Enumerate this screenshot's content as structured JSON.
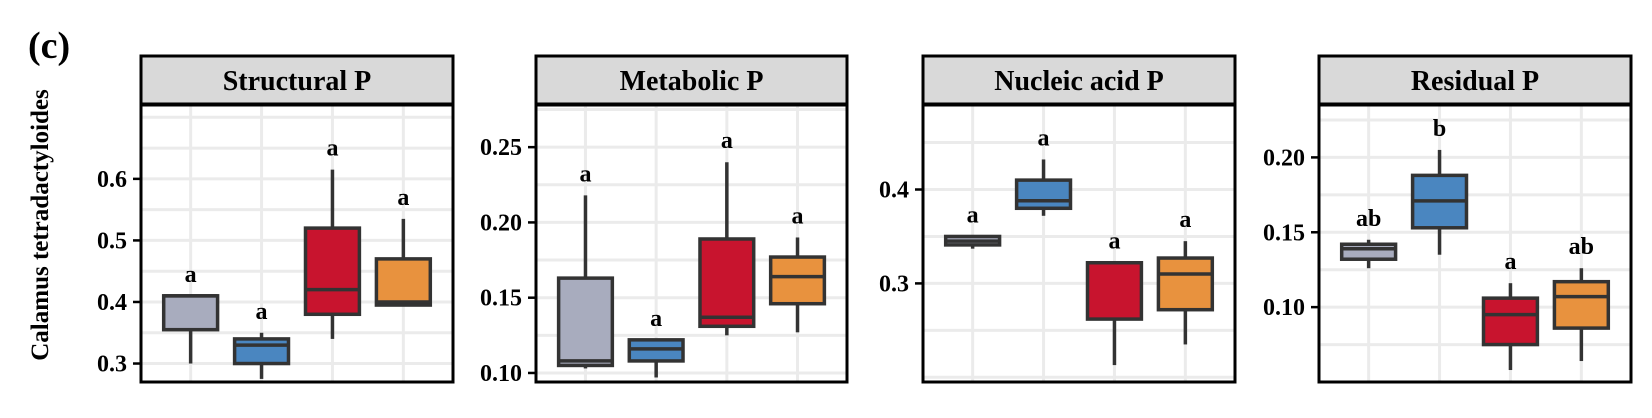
{
  "panel_label": "(c)",
  "y_axis_label": "Calamus tetradactyloides",
  "colors": {
    "group1": "#A8ACBE",
    "group2": "#4A86C0",
    "group3": "#C8142E",
    "group4": "#E8923E",
    "strip_bg": "#D9D9D9",
    "grid": "#EBEBEB",
    "outline": "#333333"
  },
  "chart_data": [
    {
      "type": "box",
      "title": "Structural P",
      "ylim": [
        0.27,
        0.72
      ],
      "yticks": [
        0.3,
        0.4,
        0.5,
        0.6
      ],
      "ytick_labels": [
        "0.3",
        "0.4",
        "0.5",
        "0.6"
      ],
      "boxes": [
        {
          "min": 0.3,
          "q1": 0.355,
          "median": 0.41,
          "q3": 0.41,
          "max": 0.41,
          "letter": "a"
        },
        {
          "min": 0.275,
          "q1": 0.3,
          "median": 0.33,
          "q3": 0.34,
          "max": 0.35,
          "letter": "a"
        },
        {
          "min": 0.34,
          "q1": 0.38,
          "median": 0.42,
          "q3": 0.52,
          "max": 0.615,
          "letter": "a"
        },
        {
          "min": 0.395,
          "q1": 0.395,
          "median": 0.4,
          "q3": 0.47,
          "max": 0.535,
          "letter": "a"
        }
      ]
    },
    {
      "type": "box",
      "title": "Metabolic P",
      "ylim": [
        0.094,
        0.278
      ],
      "yticks": [
        0.1,
        0.15,
        0.2,
        0.25
      ],
      "ytick_labels": [
        "0.10",
        "0.15",
        "0.20",
        "0.25"
      ],
      "boxes": [
        {
          "min": 0.103,
          "q1": 0.105,
          "median": 0.108,
          "q3": 0.163,
          "max": 0.218,
          "letter": "a"
        },
        {
          "min": 0.097,
          "q1": 0.108,
          "median": 0.116,
          "q3": 0.122,
          "max": 0.122,
          "letter": "a"
        },
        {
          "min": 0.125,
          "q1": 0.131,
          "median": 0.137,
          "q3": 0.189,
          "max": 0.24,
          "letter": "a"
        },
        {
          "min": 0.127,
          "q1": 0.146,
          "median": 0.164,
          "q3": 0.177,
          "max": 0.19,
          "letter": "a"
        }
      ]
    },
    {
      "type": "box",
      "title": "Nucleic acid P",
      "ylim": [
        0.195,
        0.49
      ],
      "yticks": [
        0.3,
        0.4
      ],
      "ytick_labels": [
        "0.3",
        "0.4"
      ],
      "boxes": [
        {
          "min": 0.337,
          "q1": 0.341,
          "median": 0.345,
          "q3": 0.35,
          "max": 0.35,
          "letter": "a"
        },
        {
          "min": 0.372,
          "q1": 0.38,
          "median": 0.388,
          "q3": 0.41,
          "max": 0.432,
          "letter": "a"
        },
        {
          "min": 0.213,
          "q1": 0.262,
          "median": 0.322,
          "q3": 0.322,
          "max": 0.322,
          "letter": "a"
        },
        {
          "min": 0.235,
          "q1": 0.272,
          "median": 0.31,
          "q3": 0.327,
          "max": 0.345,
          "letter": "a"
        }
      ]
    },
    {
      "type": "box",
      "title": "Residual P",
      "ylim": [
        0.05,
        0.235
      ],
      "yticks": [
        0.1,
        0.15,
        0.2
      ],
      "ytick_labels": [
        "0.10",
        "0.15",
        "0.20"
      ],
      "boxes": [
        {
          "min": 0.126,
          "q1": 0.132,
          "median": 0.139,
          "q3": 0.142,
          "max": 0.145,
          "letter": "ab"
        },
        {
          "min": 0.135,
          "q1": 0.153,
          "median": 0.171,
          "q3": 0.188,
          "max": 0.205,
          "letter": "b"
        },
        {
          "min": 0.058,
          "q1": 0.075,
          "median": 0.095,
          "q3": 0.106,
          "max": 0.116,
          "letter": "a"
        },
        {
          "min": 0.064,
          "q1": 0.086,
          "median": 0.107,
          "q3": 0.117,
          "max": 0.126,
          "letter": "ab"
        }
      ]
    }
  ]
}
